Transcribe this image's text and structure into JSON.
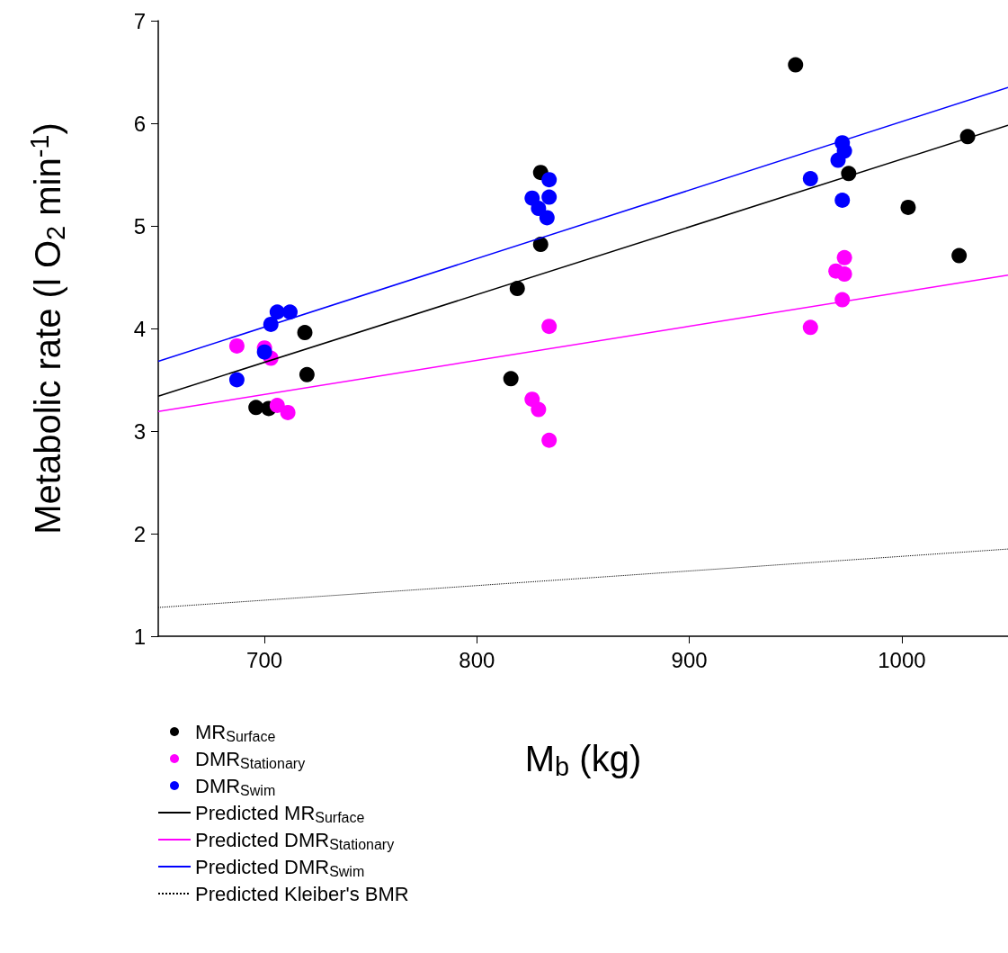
{
  "chart_data": {
    "type": "scatter",
    "xlabel": "M$_{b}$ (kg)",
    "ylabel": "Metabolic rate (l O$_{2}$ min$^{-1}$)",
    "xlim": [
      650,
      1050
    ],
    "xticks": [
      700,
      800,
      900,
      1000
    ],
    "ylim": [
      1,
      7
    ],
    "yticks": [
      1,
      2,
      3,
      4,
      5,
      6,
      7
    ],
    "grid": false,
    "legend": "bottom left",
    "marker": "circle",
    "series": [
      {
        "name": "MR$_{Surface}$",
        "color": "#000000",
        "x": [
          696,
          702,
          719,
          720,
          816,
          819,
          830,
          830,
          950,
          975,
          1003,
          1027,
          1031
        ],
        "values": [
          3.23,
          3.22,
          3.96,
          3.55,
          3.51,
          4.39,
          4.82,
          5.52,
          6.57,
          5.51,
          5.18,
          4.71,
          5.87
        ]
      },
      {
        "name": "DMR$_{Stationary}$",
        "color": "#ff00ff",
        "x": [
          687,
          700,
          703,
          706,
          711,
          826,
          829,
          834,
          834,
          957,
          972,
          969,
          973,
          973
        ],
        "values": [
          3.83,
          3.81,
          3.71,
          3.25,
          3.18,
          3.31,
          3.21,
          2.91,
          4.02,
          4.01,
          4.28,
          4.56,
          4.53,
          4.69
        ]
      },
      {
        "name": "DMR$_{Swim}$",
        "color": "#0000ff",
        "x": [
          687,
          700,
          703,
          706,
          712,
          834,
          826,
          834,
          829,
          833,
          972,
          973,
          970,
          957,
          972
        ],
        "values": [
          3.5,
          3.77,
          4.04,
          4.16,
          4.16,
          5.45,
          5.27,
          5.28,
          5.17,
          5.08,
          5.81,
          5.73,
          5.64,
          5.46,
          5.25
        ]
      },
      {
        "name": "Predicted MR$_{Surface}$",
        "type": "line",
        "marker": "none",
        "line_style": "solid",
        "color": "#000000",
        "x": [
          650,
          1050
        ],
        "values": [
          3.34,
          5.98
        ]
      },
      {
        "name": "Predicted DMR$_{Stationary}$",
        "type": "line",
        "marker": "none",
        "line_style": "solid",
        "color": "#ff00ff",
        "x": [
          650,
          1050
        ],
        "values": [
          3.19,
          4.52
        ]
      },
      {
        "name": "Predicted DMR$_{Swim}$",
        "type": "line",
        "marker": "none",
        "line_style": "solid",
        "color": "#0000ff",
        "x": [
          650,
          1050
        ],
        "values": [
          3.68,
          6.35
        ]
      },
      {
        "name": "Predicted Kleiber's BMR",
        "type": "line",
        "marker": "none",
        "line_style": "dotted",
        "color": "#000000",
        "x": [
          650,
          1050
        ],
        "values": [
          1.28,
          1.85
        ]
      }
    ]
  }
}
